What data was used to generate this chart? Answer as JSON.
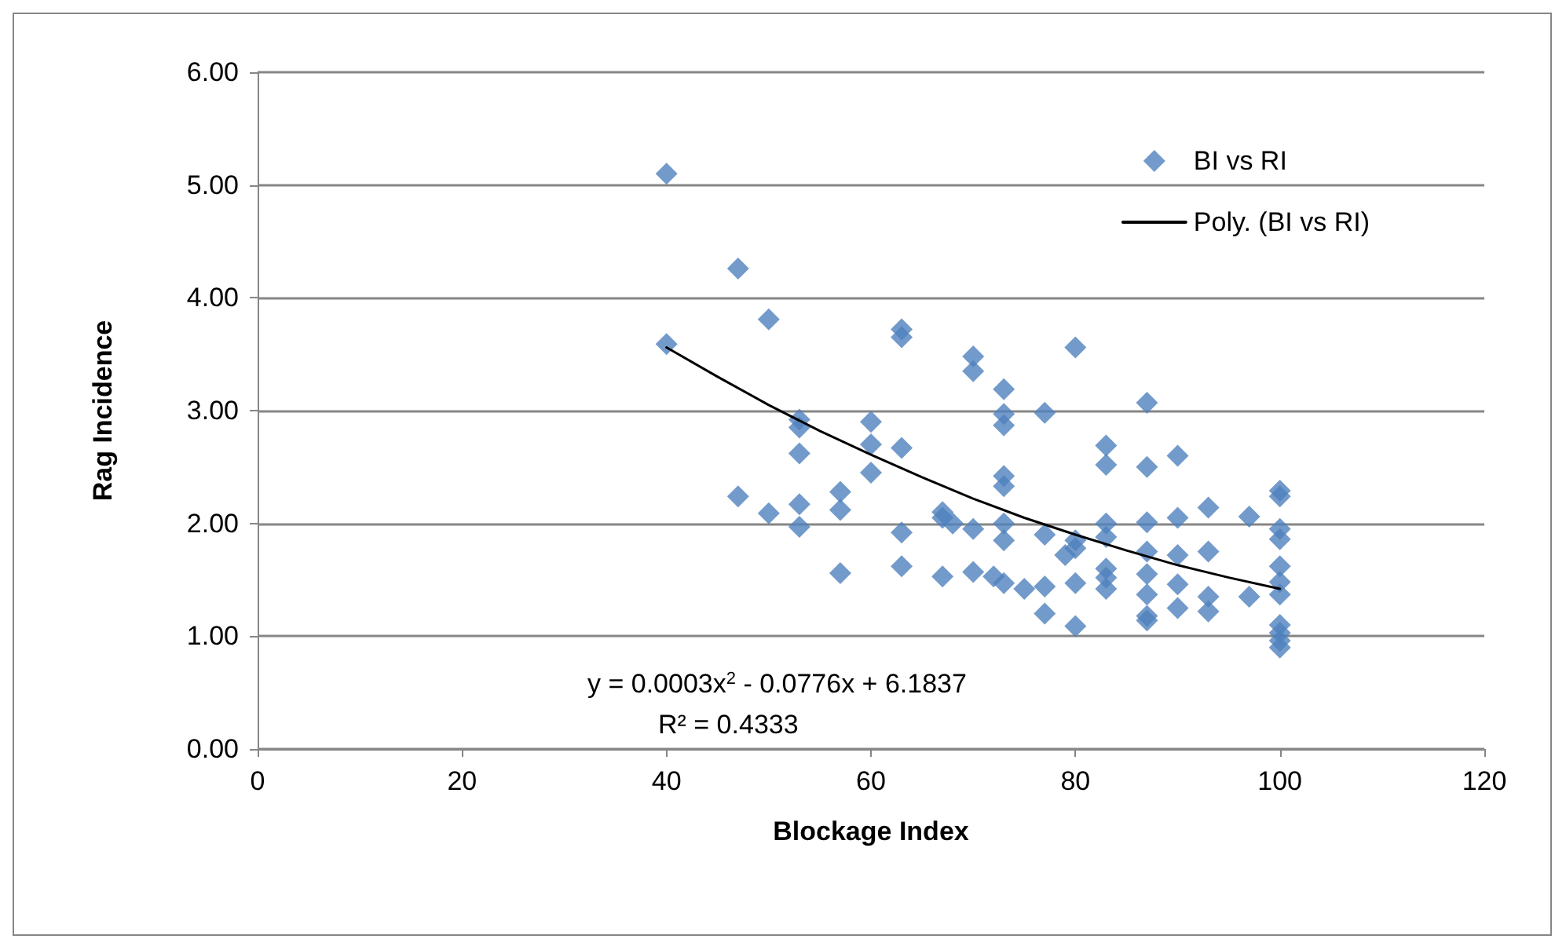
{
  "chart_data": {
    "type": "scatter",
    "xlabel": "Blockage Index",
    "ylabel": "Rag Incidence",
    "xlim": [
      0,
      120
    ],
    "xticks": [
      0,
      20,
      40,
      60,
      80,
      100,
      120
    ],
    "ylim": [
      0,
      6
    ],
    "yticks": [
      {
        "value": 0,
        "label": "0.00"
      },
      {
        "value": 1,
        "label": "1.00"
      },
      {
        "value": 2,
        "label": "2.00"
      },
      {
        "value": 3,
        "label": "3.00"
      },
      {
        "value": 4,
        "label": "4.00"
      },
      {
        "value": 5,
        "label": "5.00"
      },
      {
        "value": 6,
        "label": "6.00"
      }
    ],
    "grid": "y",
    "legend": "top right",
    "marker": "diamond",
    "series": [
      {
        "name": "BI vs RI",
        "color": "#4f81bd",
        "x": [
          40,
          40,
          47,
          47,
          50,
          50,
          53,
          53,
          53,
          53,
          53,
          57,
          57,
          57,
          60,
          60,
          60,
          63,
          63,
          63,
          63,
          63,
          67,
          67,
          67,
          68,
          70,
          70,
          70,
          70,
          72,
          73,
          73,
          73,
          73,
          73,
          73,
          73,
          73,
          75,
          77,
          77,
          77,
          77,
          79,
          80,
          80,
          80,
          80,
          80,
          83,
          83,
          83,
          83,
          83,
          83,
          83,
          87,
          87,
          87,
          87,
          87,
          87,
          87,
          87,
          90,
          90,
          90,
          90,
          90,
          93,
          93,
          93,
          93,
          97,
          97,
          100,
          100,
          100,
          100,
          100,
          100,
          100,
          100,
          100,
          100,
          100
        ],
        "values": [
          5.1,
          3.59,
          4.26,
          2.24,
          3.81,
          2.09,
          2.92,
          2.85,
          2.62,
          2.17,
          1.97,
          2.28,
          2.12,
          1.56,
          2.9,
          2.7,
          2.45,
          3.72,
          3.65,
          2.67,
          1.92,
          1.62,
          2.1,
          2.05,
          1.53,
          2.0,
          3.48,
          3.35,
          1.95,
          1.57,
          1.53,
          3.19,
          2.97,
          2.87,
          2.42,
          2.33,
          2.0,
          1.85,
          1.47,
          1.42,
          2.98,
          1.9,
          1.44,
          1.2,
          1.72,
          3.56,
          1.85,
          1.78,
          1.47,
          1.09,
          2.69,
          2.52,
          2.0,
          1.88,
          1.6,
          1.52,
          1.42,
          3.07,
          2.5,
          2.01,
          1.75,
          1.55,
          1.37,
          1.18,
          1.14,
          2.6,
          2.05,
          1.72,
          1.46,
          1.25,
          2.14,
          1.75,
          1.35,
          1.22,
          2.06,
          1.35,
          2.29,
          2.24,
          1.95,
          1.86,
          1.62,
          1.48,
          1.37,
          1.1,
          1.03,
          0.96,
          0.9
        ]
      },
      {
        "name": "Poly. (BI vs RI)",
        "type": "line",
        "color": "#000000",
        "marker": "none",
        "line_style": "solid",
        "x": [
          40,
          45,
          50,
          55,
          60,
          65,
          70,
          75,
          80,
          85,
          90,
          95,
          100
        ],
        "values": [
          3.56,
          3.3,
          3.05,
          2.82,
          2.61,
          2.41,
          2.22,
          2.05,
          1.9,
          1.76,
          1.63,
          1.52,
          1.42
        ]
      }
    ],
    "annotations": [
      "y = 0.0003x$^{2}$ - 0.0776x + 6.1837",
      "R² = 0.4333"
    ]
  }
}
